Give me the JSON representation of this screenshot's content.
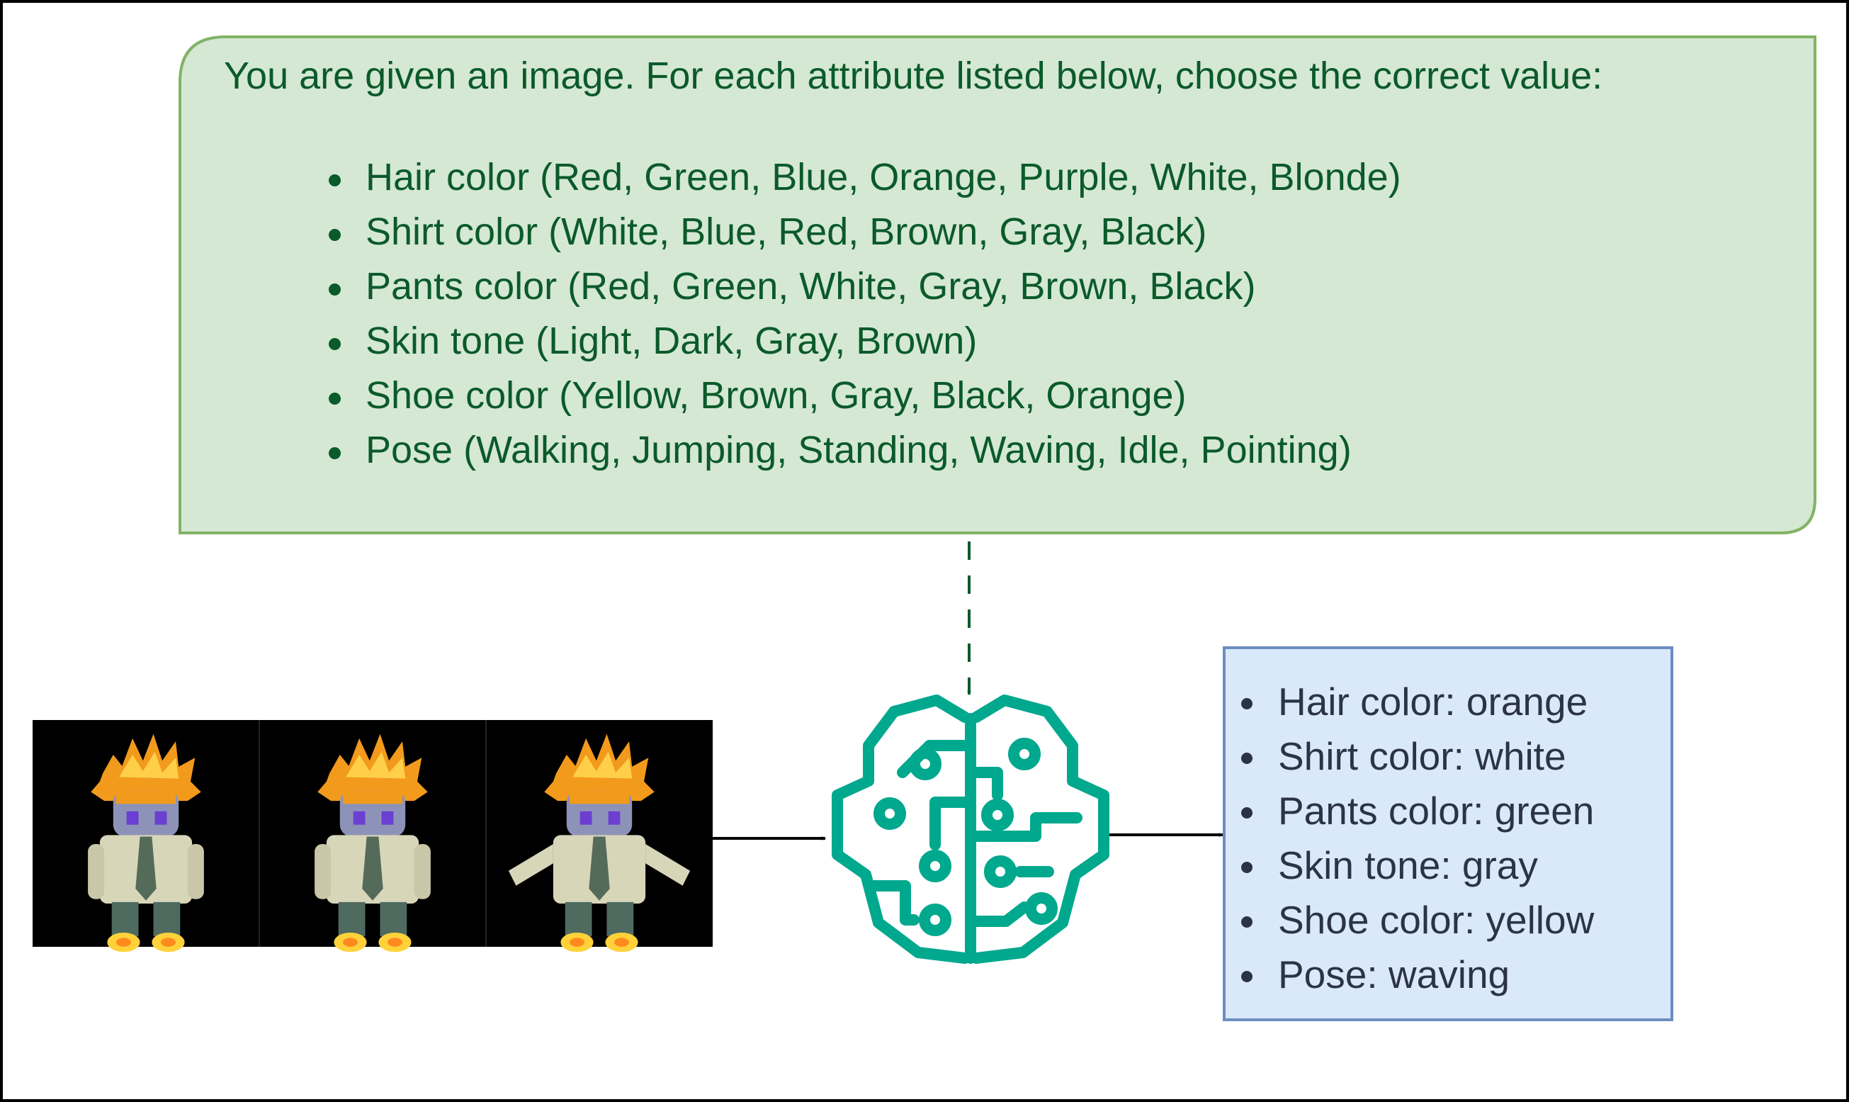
{
  "prompt": {
    "title": "You are given an image. For each attribute listed below, choose the correct value:",
    "attributes": [
      "Hair color (Red, Green, Blue, Orange, Purple, White, Blonde)",
      "Shirt color (White, Blue, Red, Brown, Gray, Black)",
      "Pants color (Red, Green, White, Gray, Brown, Black)",
      "Skin tone (Light, Dark, Gray, Brown)",
      "Shoe color (Yellow, Brown, Gray, Black, Orange)",
      "Pose (Walking, Jumping, Standing, Waving, Idle, Pointing)"
    ]
  },
  "output": {
    "items": [
      "Hair color: orange",
      "Shirt color: white",
      "Pants color: green",
      "Skin tone: gray",
      "Shoe color: yellow",
      "Pose: waving"
    ]
  },
  "icons": {
    "model": "brain-circuit-icon",
    "input": "sprite-frames"
  },
  "colors": {
    "prompt_fill": "#d5e8d4",
    "prompt_border": "#82b366",
    "prompt_text": "#0b5a2a",
    "output_fill": "#dae8fc",
    "output_border": "#6c8ebf",
    "output_text": "#2b3445",
    "brain": "#00a88e",
    "dashed_arrow": "#0b5a2a",
    "arrow": "#000000"
  }
}
